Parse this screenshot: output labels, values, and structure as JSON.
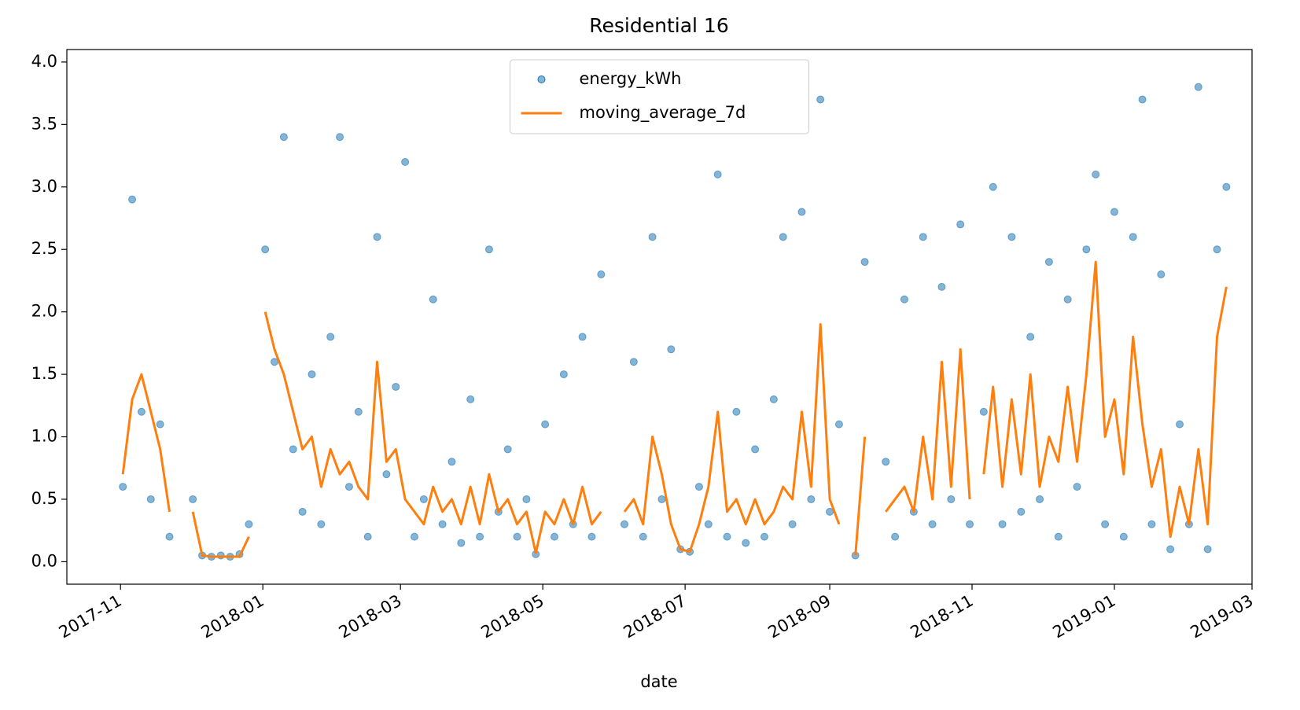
{
  "chart_data": {
    "type": "line",
    "title": "Residential 16",
    "xlabel": "date",
    "x": [
      "2017-11-02",
      "2017-11-06",
      "2017-11-10",
      "2017-11-14",
      "2017-11-18",
      "2017-11-22",
      "2017-11-27",
      "2017-12-02",
      "2017-12-06",
      "2017-12-10",
      "2017-12-14",
      "2017-12-18",
      "2017-12-22",
      "2017-12-26",
      "2017-12-29",
      "2018-01-02",
      "2018-01-06",
      "2018-01-10",
      "2018-01-14",
      "2018-01-18",
      "2018-01-22",
      "2018-01-26",
      "2018-01-30",
      "2018-02-03",
      "2018-02-07",
      "2018-02-11",
      "2018-02-15",
      "2018-02-19",
      "2018-02-23",
      "2018-02-27",
      "2018-03-03",
      "2018-03-07",
      "2018-03-11",
      "2018-03-15",
      "2018-03-19",
      "2018-03-23",
      "2018-03-27",
      "2018-03-31",
      "2018-04-04",
      "2018-04-08",
      "2018-04-12",
      "2018-04-16",
      "2018-04-20",
      "2018-04-24",
      "2018-04-28",
      "2018-05-02",
      "2018-05-06",
      "2018-05-10",
      "2018-05-14",
      "2018-05-18",
      "2018-05-22",
      "2018-05-26",
      "2018-05-31",
      "2018-06-05",
      "2018-06-09",
      "2018-06-13",
      "2018-06-17",
      "2018-06-21",
      "2018-06-25",
      "2018-06-29",
      "2018-07-03",
      "2018-07-07",
      "2018-07-11",
      "2018-07-15",
      "2018-07-19",
      "2018-07-23",
      "2018-07-27",
      "2018-07-31",
      "2018-08-04",
      "2018-08-08",
      "2018-08-12",
      "2018-08-16",
      "2018-08-20",
      "2018-08-24",
      "2018-08-28",
      "2018-09-01",
      "2018-09-05",
      "2018-09-08",
      "2018-09-12",
      "2018-09-16",
      "2018-09-20",
      "2018-09-25",
      "2018-09-29",
      "2018-10-03",
      "2018-10-07",
      "2018-10-11",
      "2018-10-15",
      "2018-10-19",
      "2018-10-23",
      "2018-10-27",
      "2018-10-31",
      "2018-11-03",
      "2018-11-06",
      "2018-11-10",
      "2018-11-14",
      "2018-11-18",
      "2018-11-22",
      "2018-11-26",
      "2018-11-30",
      "2018-12-04",
      "2018-12-08",
      "2018-12-12",
      "2018-12-16",
      "2018-12-20",
      "2018-12-24",
      "2018-12-28",
      "2019-01-01",
      "2019-01-05",
      "2019-01-09",
      "2019-01-13",
      "2019-01-17",
      "2019-01-21",
      "2019-01-25",
      "2019-01-29",
      "2019-02-02",
      "2019-02-06",
      "2019-02-10",
      "2019-02-14",
      "2019-02-18"
    ],
    "series": [
      {
        "name": "energy_kWh",
        "style": "markers",
        "color": "#1f77b4",
        "values": [
          0.6,
          2.9,
          1.2,
          0.5,
          1.1,
          0.2,
          null,
          0.5,
          0.05,
          0.04,
          0.05,
          0.04,
          0.06,
          0.3,
          null,
          2.5,
          1.6,
          3.4,
          0.9,
          0.4,
          1.5,
          0.3,
          1.8,
          3.4,
          0.6,
          1.2,
          0.2,
          2.6,
          0.7,
          1.4,
          3.2,
          0.2,
          0.5,
          2.1,
          0.3,
          0.8,
          0.15,
          1.3,
          0.2,
          2.5,
          0.4,
          0.9,
          0.2,
          0.5,
          0.06,
          1.1,
          0.2,
          1.5,
          0.3,
          1.8,
          0.2,
          2.3,
          null,
          0.3,
          1.6,
          0.2,
          2.6,
          0.5,
          1.7,
          0.1,
          0.08,
          0.6,
          0.3,
          3.1,
          0.2,
          1.2,
          0.15,
          0.9,
          0.2,
          1.3,
          2.6,
          0.3,
          2.8,
          0.5,
          3.7,
          0.4,
          1.1,
          null,
          0.05,
          2.4,
          null,
          0.8,
          0.2,
          2.1,
          0.4,
          2.6,
          0.3,
          2.2,
          0.5,
          2.7,
          0.3,
          null,
          1.2,
          3.0,
          0.3,
          2.6,
          0.4,
          1.8,
          0.5,
          2.4,
          0.2,
          2.1,
          0.6,
          2.5,
          3.1,
          0.3,
          2.8,
          0.2,
          2.6,
          3.7,
          0.3,
          2.3,
          0.1,
          1.1,
          0.3,
          3.8,
          0.1,
          2.5,
          3.0
        ]
      },
      {
        "name": "moving_average_7d",
        "style": "line",
        "color": "#ff7f0e",
        "values": [
          0.7,
          1.3,
          1.5,
          1.2,
          0.9,
          0.4,
          null,
          0.4,
          0.05,
          0.04,
          0.04,
          0.04,
          0.04,
          0.2,
          null,
          2.0,
          1.7,
          1.5,
          1.2,
          0.9,
          1.0,
          0.6,
          0.9,
          0.7,
          0.8,
          0.6,
          0.5,
          1.6,
          0.8,
          0.9,
          0.5,
          0.4,
          0.3,
          0.6,
          0.4,
          0.5,
          0.3,
          0.6,
          0.3,
          0.7,
          0.4,
          0.5,
          0.3,
          0.4,
          0.07,
          0.4,
          0.3,
          0.5,
          0.3,
          0.6,
          0.3,
          0.4,
          null,
          0.4,
          0.5,
          0.3,
          1.0,
          0.7,
          0.3,
          0.1,
          0.08,
          0.3,
          0.6,
          1.2,
          0.4,
          0.5,
          0.3,
          0.5,
          0.3,
          0.4,
          0.6,
          0.5,
          1.2,
          0.6,
          1.9,
          0.5,
          0.3,
          null,
          0.05,
          1.0,
          null,
          0.4,
          0.5,
          0.6,
          0.4,
          1.0,
          0.5,
          1.6,
          0.6,
          1.7,
          0.5,
          null,
          0.7,
          1.4,
          0.6,
          1.3,
          0.7,
          1.5,
          0.6,
          1.0,
          0.8,
          1.4,
          0.8,
          1.5,
          2.4,
          1.0,
          1.3,
          0.7,
          1.8,
          1.1,
          0.6,
          0.9,
          0.2,
          0.6,
          0.3,
          0.9,
          0.3,
          1.8,
          2.2
        ]
      }
    ],
    "xlim": [
      "2017-10-09",
      "2019-03-01"
    ],
    "xticks": [
      "2017-11",
      "2018-01",
      "2018-03",
      "2018-05",
      "2018-07",
      "2018-09",
      "2018-11",
      "2019-01",
      "2019-03"
    ],
    "ylim": [
      -0.18,
      4.1
    ],
    "yticks": [
      {
        "value": 0,
        "label": "0.0"
      },
      0.5,
      {
        "value": 1,
        "label": "1.0"
      },
      1.5,
      {
        "value": 2,
        "label": "2.0"
      },
      2.5,
      {
        "value": 3,
        "label": "3.0"
      },
      3.5,
      {
        "value": 4,
        "label": "4.0"
      }
    ],
    "legend": "upper center"
  }
}
